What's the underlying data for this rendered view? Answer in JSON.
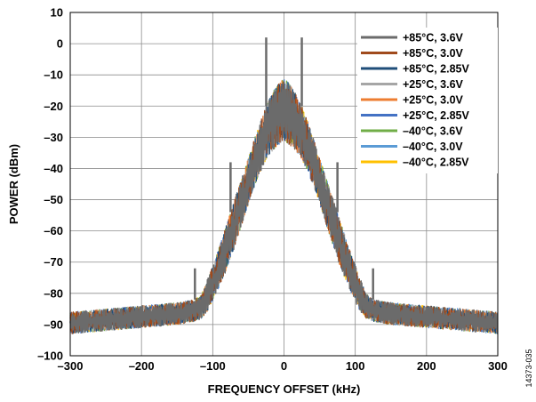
{
  "chart_data": {
    "type": "line",
    "xlabel": "FREQUENCY OFFSET (kHz)",
    "ylabel": "POWER (dBm)",
    "xlim": [
      -300,
      300
    ],
    "ylim": [
      -100,
      10
    ],
    "xticks": [
      -300,
      -200,
      -100,
      0,
      100,
      200,
      300
    ],
    "yticks": [
      10,
      0,
      -10,
      -20,
      -30,
      -40,
      -50,
      -60,
      -70,
      -80,
      -90,
      -100
    ],
    "xtick_labels": [
      "–300",
      "–200",
      "–100",
      "0",
      "100",
      "200",
      "300"
    ],
    "ytick_labels": [
      "10",
      "0",
      "–10",
      "–20",
      "–30",
      "–40",
      "–50",
      "–60",
      "–70",
      "–80",
      "–90",
      "–100"
    ],
    "grid": true,
    "legend_position": "top-right",
    "figure_id": "14373-035",
    "envelope": {
      "x": [
        -300,
        -250,
        -200,
        -150,
        -125,
        -115,
        -105,
        -95,
        -85,
        -75,
        -65,
        -55,
        -45,
        -35,
        -25,
        -15,
        -5,
        0,
        5,
        15,
        25,
        35,
        45,
        55,
        65,
        75,
        85,
        95,
        105,
        115,
        125,
        150,
        200,
        250,
        300
      ],
      "upper": [
        -86,
        -85,
        -84,
        -83,
        -82,
        -80,
        -74,
        -68,
        -61,
        -54,
        -47,
        -40,
        -33,
        -26,
        -20,
        -15,
        -12,
        -11,
        -12,
        -15,
        -20,
        -26,
        -33,
        -40,
        -47,
        -54,
        -61,
        -68,
        -74,
        -80,
        -82,
        -83,
        -84,
        -85,
        -86
      ],
      "lower": [
        -93,
        -92,
        -91,
        -90,
        -89,
        -88,
        -85,
        -80,
        -75,
        -69,
        -62,
        -55,
        -48,
        -42,
        -37,
        -34,
        -32,
        -31,
        -32,
        -34,
        -37,
        -42,
        -48,
        -55,
        -62,
        -69,
        -75,
        -80,
        -85,
        -88,
        -89,
        -90,
        -91,
        -92,
        -93
      ]
    },
    "spurs": [
      {
        "x": -125,
        "y": -72
      },
      {
        "x": -75,
        "y": -38
      },
      {
        "x": -25,
        "y": 2
      },
      {
        "x": 25,
        "y": 2
      },
      {
        "x": 75,
        "y": -38
      },
      {
        "x": 125,
        "y": -72
      }
    ],
    "series": [
      {
        "name": "+85°C, 3.6V",
        "color": "#6b6b6b"
      },
      {
        "name": "+85°C, 3.0V",
        "color": "#a04a1c"
      },
      {
        "name": "+85°C, 2.85V",
        "color": "#1f4e79"
      },
      {
        "name": "+25°C, 3.6V",
        "color": "#a6a6a6"
      },
      {
        "name": "+25°C, 3.0V",
        "color": "#ed7d31"
      },
      {
        "name": "+25°C, 2.85V",
        "color": "#4472c4"
      },
      {
        "name": "–40°C, 3.6V",
        "color": "#70ad47"
      },
      {
        "name": "–40°C, 3.0V",
        "color": "#5b9bd5"
      },
      {
        "name": "–40°C, 2.85V",
        "color": "#ffc000"
      }
    ]
  }
}
